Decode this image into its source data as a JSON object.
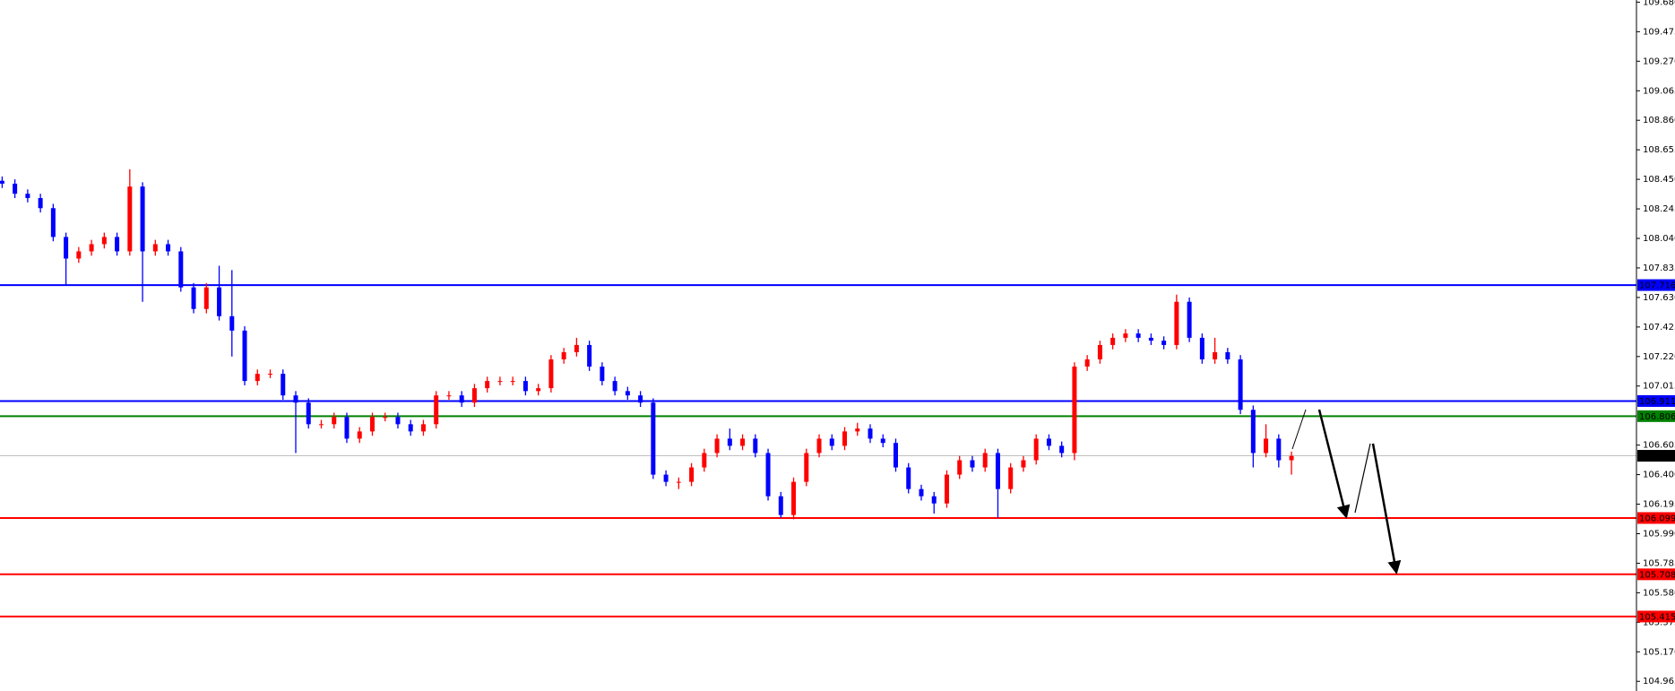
{
  "chart_data": {
    "type": "candlestick",
    "up_color": "#ff0000",
    "down_color": "#0000ff",
    "ylim": [
      104.898,
      109.695
    ],
    "yticks": [
      {
        "value": 109.68,
        "label": "109.680"
      },
      109.475,
      {
        "value": 109.27,
        "label": "109.270"
      },
      109.065,
      {
        "value": 108.86,
        "label": "108.860"
      },
      108.655,
      {
        "value": 108.45,
        "label": "108.450"
      },
      108.245,
      {
        "value": 108.04,
        "label": "108.040"
      },
      107.835,
      {
        "value": 107.63,
        "label": "107.630"
      },
      107.425,
      {
        "value": 107.22,
        "label": "107.220"
      },
      107.015,
      106.605,
      {
        "value": 106.4,
        "label": "106.400"
      },
      106.195,
      {
        "value": 105.99,
        "label": "105.990"
      },
      105.785,
      {
        "value": 105.58,
        "label": "105.580"
      },
      105.375,
      {
        "value": 105.17,
        "label": "105.170"
      },
      104.965
    ],
    "last_price": {
      "value": 106.531,
      "color": "#c0c0c0"
    },
    "levels": [
      {
        "value": 107.716,
        "color": "#0000ff"
      },
      {
        "value": 106.911,
        "color": "#0000ff"
      },
      {
        "value": 106.806,
        "color": "#008000"
      },
      {
        "value": 106.099,
        "color": "#ff0000"
      },
      {
        "value": 105.708,
        "color": "#ff0000"
      },
      {
        "value": 105.415,
        "color": "#ff0000"
      }
    ],
    "ohlc": [
      [
        108.44,
        108.47,
        108.39,
        108.42
      ],
      [
        108.42,
        108.45,
        108.32,
        108.35
      ],
      [
        108.35,
        108.38,
        108.29,
        108.32
      ],
      [
        108.32,
        108.35,
        108.22,
        108.25
      ],
      [
        108.25,
        108.28,
        108.02,
        108.05
      ],
      [
        108.05,
        108.08,
        107.72,
        107.9
      ],
      [
        107.9,
        107.98,
        107.87,
        107.95
      ],
      [
        107.95,
        108.03,
        107.92,
        108.0
      ],
      [
        108.0,
        108.08,
        107.97,
        108.05
      ],
      [
        108.05,
        108.08,
        107.92,
        107.95
      ],
      [
        107.95,
        108.52,
        107.92,
        108.4
      ],
      [
        108.4,
        108.43,
        107.6,
        107.95
      ],
      [
        107.95,
        108.03,
        107.92,
        108.0
      ],
      [
        108.0,
        108.03,
        107.92,
        107.95
      ],
      [
        107.95,
        107.98,
        107.67,
        107.7
      ],
      [
        107.7,
        107.73,
        107.52,
        107.55
      ],
      [
        107.55,
        107.73,
        107.52,
        107.7
      ],
      [
        107.7,
        107.85,
        107.47,
        107.5
      ],
      [
        107.5,
        107.82,
        107.22,
        107.4
      ],
      [
        107.4,
        107.43,
        107.02,
        107.05
      ],
      [
        107.05,
        107.13,
        107.02,
        107.1
      ],
      [
        107.1,
        107.13,
        107.07,
        107.1
      ],
      [
        107.1,
        107.13,
        106.92,
        106.95
      ],
      [
        106.95,
        106.98,
        106.55,
        106.9
      ],
      [
        106.9,
        106.93,
        106.72,
        106.75
      ],
      [
        106.75,
        106.78,
        106.72,
        106.75
      ],
      [
        106.75,
        106.83,
        106.72,
        106.8
      ],
      [
        106.8,
        106.83,
        106.62,
        106.65
      ],
      [
        106.65,
        106.73,
        106.62,
        106.7
      ],
      [
        106.7,
        106.83,
        106.67,
        106.8
      ],
      [
        106.8,
        106.83,
        106.77,
        106.8
      ],
      [
        106.8,
        106.83,
        106.72,
        106.75
      ],
      [
        106.75,
        106.78,
        106.67,
        106.7
      ],
      [
        106.7,
        106.78,
        106.67,
        106.75
      ],
      [
        106.75,
        106.98,
        106.72,
        106.95
      ],
      [
        106.95,
        106.98,
        106.92,
        106.95
      ],
      [
        106.95,
        106.98,
        106.87,
        106.9
      ],
      [
        106.9,
        107.03,
        106.87,
        107.0
      ],
      [
        107.0,
        107.08,
        106.97,
        107.05
      ],
      [
        107.05,
        107.08,
        107.02,
        107.05
      ],
      [
        107.05,
        107.08,
        107.02,
        107.05
      ],
      [
        107.05,
        107.08,
        106.95,
        106.98
      ],
      [
        106.98,
        107.03,
        106.95,
        107.0
      ],
      [
        107.0,
        107.23,
        106.97,
        107.2
      ],
      [
        107.2,
        107.28,
        107.17,
        107.25
      ],
      [
        107.25,
        107.35,
        107.22,
        107.3
      ],
      [
        107.3,
        107.33,
        107.12,
        107.15
      ],
      [
        107.15,
        107.18,
        107.02,
        107.05
      ],
      [
        107.05,
        107.08,
        106.95,
        106.98
      ],
      [
        106.98,
        107.01,
        106.92,
        106.95
      ],
      [
        106.95,
        106.98,
        106.87,
        106.9
      ],
      [
        106.9,
        106.93,
        106.37,
        106.4
      ],
      [
        106.4,
        106.43,
        106.32,
        106.35
      ],
      [
        106.35,
        106.38,
        106.3,
        106.35
      ],
      [
        106.35,
        106.48,
        106.32,
        106.45
      ],
      [
        106.45,
        106.58,
        106.42,
        106.55
      ],
      [
        106.55,
        106.68,
        106.52,
        106.65
      ],
      [
        106.65,
        106.72,
        106.57,
        106.6
      ],
      [
        106.6,
        106.68,
        106.57,
        106.65
      ],
      [
        106.65,
        106.68,
        106.52,
        106.55
      ],
      [
        106.55,
        106.58,
        106.22,
        106.25
      ],
      [
        106.25,
        106.28,
        106.1,
        106.12
      ],
      [
        106.12,
        106.38,
        106.09,
        106.35
      ],
      [
        106.35,
        106.58,
        106.32,
        106.55
      ],
      [
        106.55,
        106.68,
        106.52,
        106.65
      ],
      [
        106.65,
        106.68,
        106.57,
        106.6
      ],
      [
        106.6,
        106.73,
        106.57,
        106.7
      ],
      [
        106.7,
        106.76,
        106.67,
        106.72
      ],
      [
        106.72,
        106.75,
        106.62,
        106.65
      ],
      [
        106.65,
        106.68,
        106.59,
        106.62
      ],
      [
        106.62,
        106.65,
        106.42,
        106.45
      ],
      [
        106.45,
        106.48,
        106.27,
        106.3
      ],
      [
        106.3,
        106.33,
        106.22,
        106.25
      ],
      [
        106.25,
        106.28,
        106.13,
        106.2
      ],
      [
        106.2,
        106.43,
        106.17,
        106.4
      ],
      [
        106.4,
        106.53,
        106.37,
        106.5
      ],
      [
        106.5,
        106.53,
        106.42,
        106.45
      ],
      [
        106.45,
        106.58,
        106.42,
        106.55
      ],
      [
        106.55,
        106.58,
        106.1,
        106.3
      ],
      [
        106.3,
        106.48,
        106.27,
        106.45
      ],
      [
        106.45,
        106.53,
        106.42,
        106.5
      ],
      [
        106.5,
        106.68,
        106.47,
        106.65
      ],
      [
        106.65,
        106.68,
        106.57,
        106.6
      ],
      [
        106.6,
        106.63,
        106.52,
        106.55
      ],
      [
        106.55,
        107.18,
        106.5,
        107.15
      ],
      [
        107.15,
        107.23,
        107.12,
        107.2
      ],
      [
        107.2,
        107.33,
        107.17,
        107.3
      ],
      [
        107.3,
        107.38,
        107.27,
        107.35
      ],
      [
        107.35,
        107.41,
        107.32,
        107.38
      ],
      [
        107.38,
        107.41,
        107.32,
        107.35
      ],
      [
        107.35,
        107.38,
        107.3,
        107.33
      ],
      [
        107.33,
        107.36,
        107.27,
        107.3
      ],
      [
        107.3,
        107.65,
        107.27,
        107.6
      ],
      [
        107.6,
        107.63,
        107.32,
        107.35
      ],
      [
        107.35,
        107.38,
        107.17,
        107.2
      ],
      [
        107.2,
        107.35,
        107.17,
        107.25
      ],
      [
        107.25,
        107.28,
        107.17,
        107.2
      ],
      [
        107.2,
        107.23,
        106.82,
        106.85
      ],
      [
        106.85,
        106.88,
        106.45,
        106.55
      ],
      [
        106.55,
        106.75,
        106.52,
        106.65
      ],
      [
        106.65,
        106.68,
        106.45,
        106.5
      ],
      [
        106.5,
        106.56,
        106.4,
        106.53
      ]
    ]
  }
}
